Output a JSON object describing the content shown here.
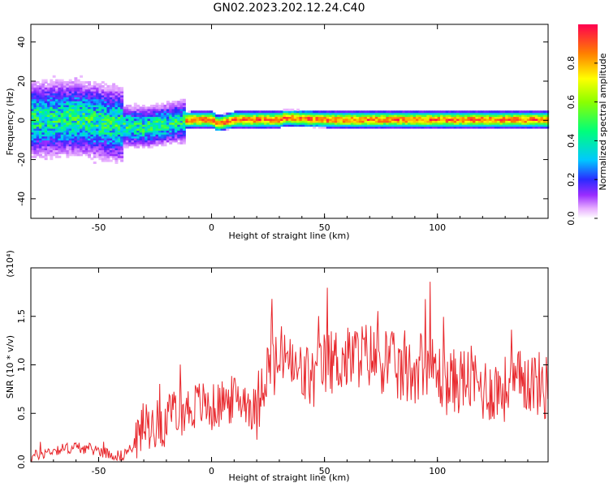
{
  "title": "GN02.2023.202.12.24.C40",
  "chart_data": [
    {
      "type": "heatmap",
      "xlabel": "Height of straight line (km)",
      "ylabel": "Frequency (Hz)",
      "xlim": [
        -80,
        149
      ],
      "ylim": [
        -50,
        49
      ],
      "xticks": [
        -50,
        0,
        50,
        100
      ],
      "yticks": [
        -40,
        -20,
        0,
        20,
        40
      ],
      "grid": false,
      "colorbar": {
        "label": "Normalized spectral amplitude",
        "range": [
          0.0,
          1.0
        ],
        "ticks": [
          "0.0",
          "0.2",
          "0.4",
          "0.6",
          "0.8"
        ],
        "colormap": "rainbow (magenta–blue–cyan–green–yellow–red)"
      },
      "ridge_frequency": [
        {
          "x": -80,
          "y": 0
        },
        {
          "x": -60,
          "y": 1
        },
        {
          "x": -50,
          "y": -1
        },
        {
          "x": -40,
          "y": -3
        },
        {
          "x": -30,
          "y": -4
        },
        {
          "x": -20,
          "y": -2
        },
        {
          "x": -10,
          "y": 0
        },
        {
          "x": 0,
          "y": 0
        },
        {
          "x": 2,
          "y": -2
        },
        {
          "x": 10,
          "y": 0
        },
        {
          "x": 30,
          "y": 0
        },
        {
          "x": 32,
          "y": 1
        },
        {
          "x": 50,
          "y": 0
        },
        {
          "x": 100,
          "y": 0
        },
        {
          "x": 149,
          "y": 0
        }
      ]
    },
    {
      "type": "line",
      "xlabel": "Height of straight line (km)",
      "ylabel": "SNR (10 * v/v)",
      "y_multiplier": "(x10⁴)",
      "xlim": [
        -80,
        149
      ],
      "ylim": [
        0,
        2.0
      ],
      "xticks": [
        -50,
        0,
        50,
        100
      ],
      "yticks": [
        "0.0",
        "0.5",
        "1.0",
        "1.5"
      ],
      "grid": false,
      "line_color": "#e8282d",
      "series": [
        {
          "x": [
            -80,
            -70,
            -60,
            -50,
            -45,
            -40,
            -35,
            -30,
            -25,
            -20,
            -15,
            -10,
            -5,
            0,
            5,
            10,
            15,
            20,
            22,
            25,
            30,
            33,
            35,
            40,
            45,
            50,
            55,
            60,
            65,
            70,
            75,
            80,
            85,
            90,
            95,
            100,
            105,
            110,
            115,
            120,
            125,
            130,
            135,
            140,
            145,
            149
          ],
          "y": [
            0.05,
            0.12,
            0.15,
            0.12,
            0.08,
            0.06,
            0.15,
            0.35,
            0.4,
            0.4,
            0.5,
            0.55,
            0.6,
            0.55,
            0.6,
            0.65,
            0.65,
            0.5,
            0.85,
            0.95,
            1.0,
            1.2,
            0.95,
            0.9,
            0.85,
            1.0,
            1.05,
            1.05,
            1.1,
            1.1,
            1.05,
            1.0,
            0.9,
            0.95,
            1.05,
            0.9,
            0.8,
            0.85,
            0.85,
            0.75,
            0.75,
            0.75,
            0.8,
            0.85,
            0.8,
            0.75
          ]
        }
      ]
    }
  ]
}
